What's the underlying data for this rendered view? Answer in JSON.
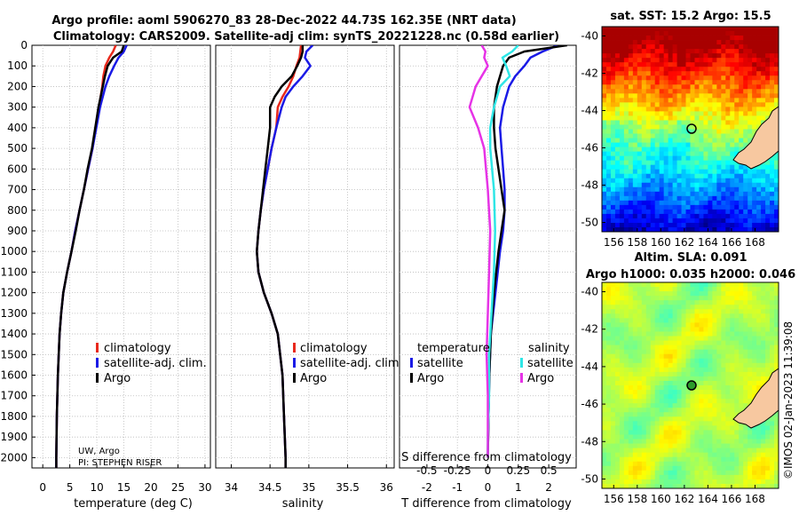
{
  "title_line1": "Argo profile: aoml 5906270_83 28-Dec-2022 44.73S 162.35E (NRT data)",
  "title_line2": "Climatology: CARS2009. Satellite-adj clim: synTS_20221228.nc (0.58d earlier)",
  "credit": "UW, Argo",
  "pi": "PI: STEPHEN RISER",
  "imos": "©IMOS 02-Jan-2023 11:39:08",
  "colors": {
    "climatology": "#e8291c",
    "satellite": "#1a1ae6",
    "argo": "#000000",
    "sat_cyan": "#2ee6e6",
    "argo_magenta": "#e633e6",
    "land": "#f7c8a0"
  },
  "chart_data": [
    {
      "type": "line",
      "name": "temperature",
      "xlabel": "temperature (deg C)",
      "xlim": [
        -2,
        31
      ],
      "ylim": [
        2050,
        0
      ],
      "xticks": [
        "0",
        "5",
        "10",
        "15",
        "20",
        "25",
        "30"
      ],
      "yticks": [
        "0",
        "100",
        "200",
        "300",
        "400",
        "500",
        "600",
        "700",
        "800",
        "900",
        "1000",
        "1100",
        "1200",
        "1300",
        "1400",
        "1500",
        "1600",
        "1700",
        "1800",
        "1900",
        "2000"
      ],
      "legend": [
        "climatology",
        "satellite-adj. clim.",
        "Argo"
      ],
      "series": [
        {
          "name": "climatology",
          "depth": [
            0,
            30,
            60,
            100,
            150,
            200,
            300,
            400,
            500,
            600,
            700,
            800,
            900,
            1000,
            1100,
            1200,
            1300,
            1400,
            1600,
            1800,
            2000,
            2050
          ],
          "values": [
            13.5,
            13,
            12.3,
            11.6,
            11.2,
            11,
            10.4,
            9.8,
            9.2,
            8.4,
            7.6,
            6.8,
            6,
            5.3,
            4.5,
            3.8,
            3.4,
            3.1,
            2.8,
            2.6,
            2.5,
            2.5
          ]
        },
        {
          "name": "satellite-adj. clim.",
          "depth": [
            0,
            30,
            60,
            100,
            150,
            200,
            300,
            400,
            500,
            600,
            700,
            800,
            900,
            1000,
            1100,
            1200,
            1300,
            1400,
            1600,
            1800,
            2000,
            2050
          ],
          "values": [
            15.5,
            15,
            14,
            13.2,
            12.3,
            11.6,
            10.6,
            9.9,
            9.2,
            8.4,
            7.6,
            6.8,
            6,
            5.3,
            4.5,
            3.8,
            3.4,
            3.1,
            2.8,
            2.6,
            2.5,
            2.5
          ]
        },
        {
          "name": "Argo",
          "depth": [
            0,
            30,
            60,
            100,
            150,
            200,
            300,
            400,
            500,
            600,
            700,
            800,
            900,
            1000,
            1100,
            1200,
            1300,
            1400,
            1600,
            1800,
            2000,
            2050
          ],
          "values": [
            15,
            14.6,
            13,
            12,
            11.5,
            11.1,
            10.3,
            9.7,
            9.1,
            8.3,
            7.6,
            6.8,
            6.1,
            5.3,
            4.5,
            3.8,
            3.4,
            3.1,
            2.8,
            2.6,
            2.5,
            2.5
          ]
        }
      ]
    },
    {
      "type": "line",
      "name": "salinity",
      "xlabel": "salinity",
      "xlim": [
        33.8,
        36.1
      ],
      "ylim": [
        2050,
        0
      ],
      "xticks": [
        "34",
        "34.5",
        "35",
        "35.5",
        "36"
      ],
      "legend": [
        "climatology",
        "satellite-adj. clim.",
        "Argo"
      ],
      "series": [
        {
          "name": "climatology",
          "depth": [
            0,
            60,
            100,
            150,
            200,
            250,
            300,
            400,
            500,
            600,
            700,
            800,
            900,
            1000,
            1100,
            1200,
            1300,
            1400,
            1600,
            1800,
            2000,
            2050
          ],
          "values": [
            34.9,
            34.88,
            34.84,
            34.8,
            34.74,
            34.66,
            34.6,
            34.58,
            34.52,
            34.47,
            34.42,
            34.38,
            34.35,
            34.33,
            34.35,
            34.42,
            34.52,
            34.6,
            34.66,
            34.68,
            34.7,
            34.7
          ]
        },
        {
          "name": "satellite-adj. clim.",
          "depth": [
            0,
            30,
            60,
            100,
            150,
            200,
            250,
            300,
            400,
            500,
            600,
            700,
            800,
            900,
            1000,
            1100,
            1200,
            1300,
            1400,
            1600,
            1800,
            2000,
            2050
          ],
          "values": [
            35.05,
            34.97,
            34.95,
            35.02,
            34.92,
            34.8,
            34.7,
            34.65,
            34.58,
            34.52,
            34.47,
            34.42,
            34.38,
            34.35,
            34.33,
            34.35,
            34.42,
            34.52,
            34.6,
            34.66,
            34.68,
            34.7,
            34.7
          ]
        },
        {
          "name": "Argo",
          "depth": [
            0,
            30,
            60,
            100,
            150,
            200,
            250,
            300,
            400,
            500,
            600,
            700,
            800,
            900,
            1000,
            1100,
            1200,
            1300,
            1400,
            1600,
            1800,
            2000,
            2050
          ],
          "values": [
            34.92,
            34.92,
            34.9,
            34.85,
            34.78,
            34.65,
            34.56,
            34.5,
            34.5,
            34.47,
            34.44,
            34.41,
            34.38,
            34.35,
            34.33,
            34.35,
            34.42,
            34.52,
            34.6,
            34.66,
            34.68,
            34.7,
            34.7
          ]
        }
      ]
    },
    {
      "type": "line",
      "name": "difference",
      "xlabel": "T difference from climatology",
      "xlabel2": "S difference from climatology",
      "xlim": [
        -2.9,
        2.9
      ],
      "ylim": [
        2050,
        0
      ],
      "xticks": [
        "-2",
        "-1",
        "0",
        "1",
        "2"
      ],
      "xticks2": [
        "-0.5",
        "-0.25",
        "0",
        "0.25",
        "0.5"
      ],
      "legend_titles": [
        "temperature",
        "salinity"
      ],
      "legend": [
        "satellite",
        "Argo",
        "satellite",
        "Argo"
      ],
      "series": [
        {
          "name": "T satellite",
          "depth": [
            0,
            30,
            60,
            100,
            150,
            200,
            300,
            400,
            500,
            600,
            700,
            800,
            900,
            1000,
            1200,
            1400,
            1600,
            1800,
            2000
          ],
          "values": [
            2.3,
            1.8,
            1.4,
            1.2,
            0.9,
            0.7,
            0.5,
            0.4,
            0.45,
            0.5,
            0.55,
            0.55,
            0.5,
            0.4,
            0.25,
            0.1,
            0.05,
            0.02,
            0
          ]
        },
        {
          "name": "T Argo",
          "depth": [
            0,
            15,
            30,
            60,
            100,
            150,
            200,
            300,
            400,
            500,
            600,
            700,
            800,
            900,
            1000,
            1200,
            1400,
            1600,
            1800,
            2000
          ],
          "values": [
            2.6,
            1.9,
            1.2,
            0.7,
            0.5,
            0.4,
            0.3,
            0.2,
            0.2,
            0.25,
            0.35,
            0.45,
            0.55,
            0.45,
            0.35,
            0.2,
            0.1,
            0.05,
            0.02,
            0
          ]
        },
        {
          "name": "S satellite",
          "depth": [
            0,
            30,
            60,
            100,
            150,
            200,
            300,
            400,
            500,
            700,
            900,
            1100,
            1300,
            1500,
            1700,
            1900,
            2000
          ],
          "values": [
            0.25,
            0.2,
            0.12,
            0.15,
            0.18,
            0.1,
            0.05,
            0.02,
            0.02,
            0.05,
            0.06,
            0.05,
            0.03,
            0.01,
            0.01,
            0,
            0
          ]
        },
        {
          "name": "S Argo",
          "depth": [
            0,
            30,
            60,
            100,
            150,
            200,
            300,
            400,
            500,
            700,
            900,
            1100,
            1300,
            1500,
            1700,
            1900,
            2000
          ],
          "values": [
            -0.05,
            -0.02,
            -0.03,
            0,
            -0.05,
            -0.1,
            -0.15,
            -0.08,
            -0.03,
            0.0,
            0.02,
            0.01,
            0,
            -0.01,
            0,
            0,
            0
          ]
        }
      ]
    },
    {
      "type": "heatmap",
      "name": "sst_map",
      "title": "sat. SST: 15.2 Argo: 15.5",
      "xticks": [
        "156",
        "158",
        "160",
        "162",
        "164",
        "166",
        "168"
      ],
      "yticks": [
        "-40",
        "-42",
        "-44",
        "-46",
        "-48",
        "-50"
      ],
      "xlim": [
        155,
        170
      ],
      "ylim": [
        -50.5,
        -39.5
      ],
      "marker": [
        162.35,
        -44.73
      ]
    },
    {
      "type": "heatmap",
      "name": "sla_map",
      "title1": "Altim. SLA: 0.091",
      "title2": "Argo h1000: 0.035 h2000: 0.046",
      "xticks": [
        "156",
        "158",
        "160",
        "162",
        "164",
        "166",
        "168"
      ],
      "yticks": [
        "-40",
        "-42",
        "-44",
        "-46",
        "-48",
        "-50"
      ],
      "xlim": [
        155,
        170
      ],
      "ylim": [
        -50.5,
        -39.5
      ],
      "marker": [
        162.35,
        -44.73
      ]
    }
  ]
}
